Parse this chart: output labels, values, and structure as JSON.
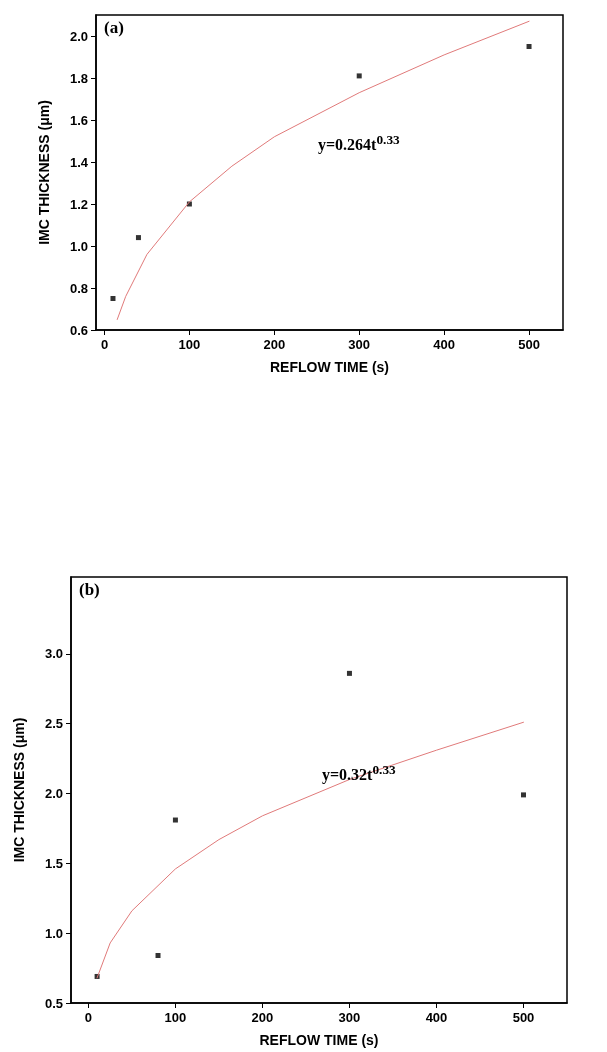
{
  "chart_data": [
    {
      "type": "scatter",
      "title": "(a)",
      "xlabel": "REFLOW TIME (s)",
      "ylabel": "IMC THICKNESS (μm)",
      "xlim": [
        -10,
        540
      ],
      "ylim": [
        0.6,
        2.1
      ],
      "xticks": [
        0,
        100,
        200,
        300,
        400,
        500
      ],
      "yticks": [
        {
          "value": 0.6,
          "label": "0.6"
        },
        {
          "value": 0.8,
          "label": "0.8"
        },
        {
          "value": 1,
          "label": "1.0"
        },
        {
          "value": 1.2,
          "label": "1.2"
        },
        {
          "value": 1.4,
          "label": "1.4"
        },
        {
          "value": 1.6,
          "label": "1.6"
        },
        {
          "value": 1.8,
          "label": "1.8"
        },
        {
          "value": 2,
          "label": "2.0"
        }
      ],
      "grid": false,
      "marker": "square",
      "series": [
        {
          "type": "scatter",
          "color": "#000000",
          "x": [
            10,
            40,
            100,
            300,
            500
          ],
          "values": [
            0.75,
            1.04,
            1.2,
            1.81,
            1.95
          ]
        },
        {
          "type": "line",
          "color": "#e07a7a",
          "marker": "none",
          "x": [
            15,
            25,
            50,
            100,
            150,
            200,
            300,
            400,
            500
          ],
          "values": [
            0.65,
            0.76,
            0.96,
            1.21,
            1.38,
            1.52,
            1.73,
            1.91,
            2.07
          ]
        }
      ],
      "annotations": [
        "y=0.264t$^{0.33}$"
      ]
    },
    {
      "type": "scatter",
      "title": "(b)",
      "xlabel": "REFLOW TIME (s)",
      "ylabel": "IMC THICKNESS (μm)",
      "xlim": [
        -20,
        550
      ],
      "ylim": [
        0.5,
        3.55
      ],
      "xticks": [
        0,
        100,
        200,
        300,
        400,
        500
      ],
      "yticks": [
        {
          "value": 0.5,
          "label": "0.5"
        },
        {
          "value": 1,
          "label": "1.0"
        },
        {
          "value": 1.5,
          "label": "1.5"
        },
        {
          "value": 2,
          "label": "2.0"
        },
        {
          "value": 2.5,
          "label": "2.5"
        },
        {
          "value": 3,
          "label": "3.0"
        }
      ],
      "grid": false,
      "marker": "square",
      "series": [
        {
          "type": "scatter",
          "color": "#000000",
          "x": [
            10,
            80,
            100,
            300,
            500
          ],
          "values": [
            0.69,
            0.84,
            1.81,
            2.86,
            1.99
          ]
        },
        {
          "type": "line",
          "color": "#e07a7a",
          "marker": "none",
          "x": [
            10,
            25,
            50,
            100,
            150,
            200,
            300,
            400,
            500
          ],
          "values": [
            0.68,
            0.93,
            1.16,
            1.46,
            1.67,
            1.84,
            2.1,
            2.31,
            2.51
          ]
        }
      ],
      "annotations": [
        "y=0.32t$^{0.33}$"
      ]
    }
  ]
}
